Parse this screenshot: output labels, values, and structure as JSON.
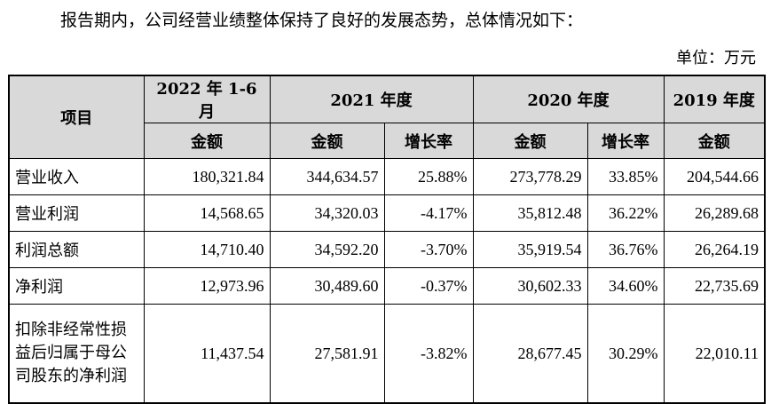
{
  "intro_text": "报告期内，公司经营业绩整体保持了良好的发展态势，总体情况如下：",
  "unit_label": "单位：万元",
  "table": {
    "item_header": "项目",
    "period_headers": [
      "2022 年 1-6 月",
      "2021 年度",
      "2020 年度",
      "2019 年度"
    ],
    "sub_headers": [
      "金额",
      "金额",
      "增长率",
      "金额",
      "增长率",
      "金额"
    ],
    "rows": [
      {
        "label": "营业收入",
        "values": [
          "180,321.84",
          "344,634.57",
          "25.88%",
          "273,778.29",
          "33.85%",
          "204,544.66"
        ]
      },
      {
        "label": "营业利润",
        "values": [
          "14,568.65",
          "34,320.03",
          "-4.17%",
          "35,812.48",
          "36.22%",
          "26,289.68"
        ]
      },
      {
        "label": "利润总额",
        "values": [
          "14,710.40",
          "34,592.20",
          "-3.70%",
          "35,919.54",
          "36.76%",
          "26,264.19"
        ]
      },
      {
        "label": "净利润",
        "values": [
          "12,973.96",
          "30,489.60",
          "-0.37%",
          "30,602.33",
          "34.60%",
          "22,735.69"
        ]
      },
      {
        "label": "扣除非经常性损益后归属于母公司股东的净利润",
        "values": [
          "11,437.54",
          "27,581.91",
          "-3.82%",
          "28,677.45",
          "30.29%",
          "22,010.11"
        ]
      }
    ]
  }
}
